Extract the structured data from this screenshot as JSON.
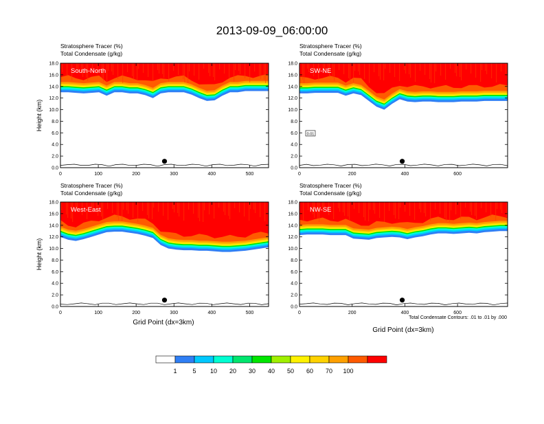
{
  "figure": {
    "title": "2013-09-09_06:00:00",
    "footnote": "Total Condensate Contours: .01 to .01 by .000"
  },
  "colorbar": {
    "colors": [
      "#ffffff",
      "#2f7ff5",
      "#00c8ff",
      "#00ffd2",
      "#00e66e",
      "#00e600",
      "#a0f000",
      "#fff200",
      "#ffd200",
      "#ffa000",
      "#ff5a00",
      "#ff0000"
    ],
    "labels": [
      "1",
      "5",
      "10",
      "20",
      "30",
      "40",
      "50",
      "60",
      "70",
      "100"
    ]
  },
  "chart_data": [
    {
      "type": "heatmap",
      "panel_label": "South-North",
      "subtitle_1": "Stratosphere Tracer   (%)",
      "subtitle_2": "Total Condensate   (g/kg)",
      "ylabel": "Height (km)",
      "xlabel": "",
      "xlim": [
        0,
        550
      ],
      "ylim": [
        0,
        18
      ],
      "xticks": [
        "0",
        "100",
        "200",
        "300",
        "400",
        "500"
      ],
      "xtick_values": [
        0,
        100,
        200,
        300,
        400,
        500
      ],
      "yticks": [
        "0.0",
        "2.0",
        "4.0",
        "6.0",
        "8.0",
        "10.0",
        "12.0",
        "14.0",
        "16.0",
        "18.0"
      ],
      "tracer_base_km": [
        13.0,
        13.0,
        12.9,
        12.8,
        12.9,
        13.0,
        12.4,
        13.0,
        13.0,
        12.8,
        12.8,
        12.5,
        12.0,
        12.8,
        13.0,
        13.0,
        13.0,
        12.6,
        12.0,
        11.5,
        11.6,
        12.4,
        13.0,
        13.0,
        13.2,
        13.2,
        13.2,
        13.2
      ],
      "dot_x": 275,
      "dot_y_km": 1.1
    },
    {
      "type": "heatmap",
      "panel_label": "SW-NE",
      "subtitle_1": "Stratosphere Tracer   (%)",
      "subtitle_2": "Total Condensate   (g/kg)",
      "ylabel": "",
      "xlabel": "",
      "xlim": [
        0,
        790
      ],
      "ylim": [
        0,
        18
      ],
      "xticks": [
        "0",
        "200",
        "400",
        "600"
      ],
      "xtick_values": [
        0,
        200,
        400,
        600
      ],
      "yticks": [
        "0.0",
        "2.0",
        "4.0",
        "6.0",
        "8.0",
        "10.0",
        "12.0",
        "14.0",
        "16.0",
        "18.0"
      ],
      "tracer_base_km": [
        12.8,
        12.8,
        12.9,
        12.9,
        12.9,
        12.9,
        12.4,
        12.8,
        12.5,
        11.5,
        10.5,
        10.0,
        11.0,
        11.8,
        11.4,
        11.3,
        11.4,
        11.4,
        11.3,
        11.3,
        11.3,
        11.4,
        11.4,
        11.4,
        11.5,
        11.5,
        11.5,
        11.5
      ],
      "contour_label": "0.01",
      "dot_x": 390,
      "dot_y_km": 1.1
    },
    {
      "type": "heatmap",
      "panel_label": "West-East",
      "subtitle_1": "Stratosphere Tracer   (%)",
      "subtitle_2": "Total Condensate   (g/kg)",
      "ylabel": "Height (km)",
      "xlabel": "Grid Point (dx=3km)",
      "xlim": [
        0,
        550
      ],
      "ylim": [
        0,
        18
      ],
      "xticks": [
        "0",
        "100",
        "200",
        "300",
        "400",
        "500"
      ],
      "xtick_values": [
        0,
        100,
        200,
        300,
        400,
        500
      ],
      "yticks": [
        "0.0",
        "2.0",
        "4.0",
        "6.0",
        "8.0",
        "10.0",
        "12.0",
        "14.0",
        "16.0",
        "18.0"
      ],
      "tracer_base_km": [
        12.0,
        11.5,
        11.3,
        11.6,
        12.0,
        12.4,
        12.8,
        12.9,
        12.9,
        12.7,
        12.5,
        12.2,
        11.8,
        10.6,
        10.0,
        9.8,
        9.7,
        9.7,
        9.6,
        9.6,
        9.5,
        9.4,
        9.4,
        9.5,
        9.6,
        9.8,
        10.0,
        10.2
      ],
      "dot_x": 275,
      "dot_y_km": 1.1
    },
    {
      "type": "heatmap",
      "panel_label": "NW-SE",
      "subtitle_1": "Stratosphere Tracer   (%)",
      "subtitle_2": "Total Condensate   (g/kg)",
      "ylabel": "",
      "xlabel": "Grid Point (dx=3km)",
      "xlim": [
        0,
        790
      ],
      "ylim": [
        0,
        18
      ],
      "xticks": [
        "0",
        "200",
        "400",
        "600"
      ],
      "xtick_values": [
        0,
        200,
        400,
        600
      ],
      "yticks": [
        "0.0",
        "2.0",
        "4.0",
        "6.0",
        "8.0",
        "10.0",
        "12.0",
        "14.0",
        "16.0",
        "18.0"
      ],
      "tracer_base_km": [
        12.3,
        12.4,
        12.4,
        12.4,
        12.3,
        12.3,
        12.3,
        11.7,
        11.6,
        11.5,
        11.8,
        11.9,
        12.0,
        11.9,
        11.6,
        11.9,
        12.1,
        12.4,
        12.6,
        12.6,
        12.5,
        12.6,
        12.7,
        12.6,
        12.8,
        12.9,
        13.0,
        13.0
      ],
      "dot_x": 390,
      "dot_y_km": 1.1
    }
  ]
}
